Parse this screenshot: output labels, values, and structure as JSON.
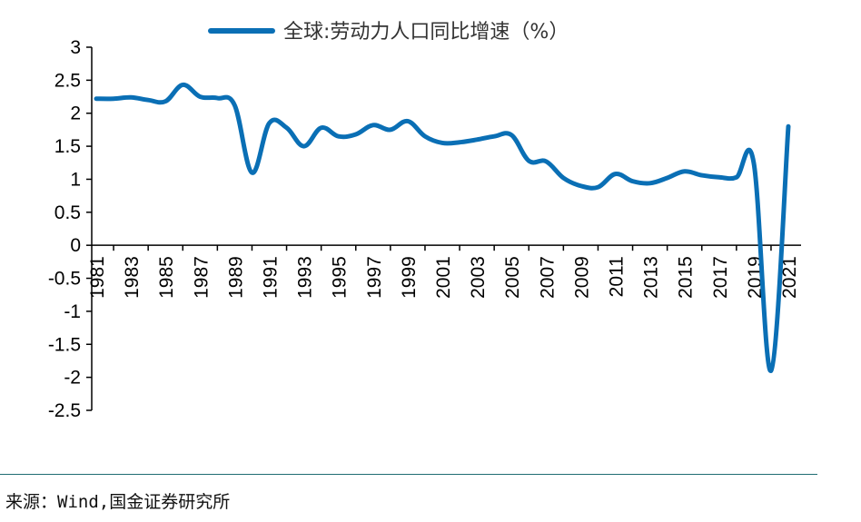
{
  "chart_data": {
    "type": "line",
    "title": "",
    "xlabel": "",
    "ylabel": "",
    "ylim": [
      -2.5,
      3
    ],
    "y_ticks": [
      "3",
      "2.5",
      "2",
      "1.5",
      "1",
      "0.5",
      "0",
      "-0.5",
      "-1",
      "-1.5",
      "-2",
      "-2.5"
    ],
    "x_tick_labels": [
      "1981",
      "1983",
      "1985",
      "1987",
      "1989",
      "1991",
      "1993",
      "1995",
      "1997",
      "1999",
      "2001",
      "2003",
      "2005",
      "2007",
      "2009",
      "2011",
      "2013",
      "2015",
      "2017",
      "2019",
      "2021"
    ],
    "x": [
      1981,
      1982,
      1983,
      1984,
      1985,
      1986,
      1987,
      1988,
      1989,
      1990,
      1991,
      1992,
      1993,
      1994,
      1995,
      1996,
      1997,
      1998,
      1999,
      2000,
      2001,
      2002,
      2003,
      2004,
      2005,
      2006,
      2007,
      2008,
      2009,
      2010,
      2011,
      2012,
      2013,
      2014,
      2015,
      2016,
      2017,
      2018,
      2019,
      2020,
      2021
    ],
    "series": [
      {
        "name": "全球:劳动力人口同比增速（%）",
        "color": "#0a6fb5",
        "values": [
          2.22,
          2.22,
          2.24,
          2.2,
          2.18,
          2.43,
          2.25,
          2.23,
          2.12,
          1.1,
          1.85,
          1.78,
          1.5,
          1.78,
          1.65,
          1.68,
          1.82,
          1.75,
          1.88,
          1.65,
          1.55,
          1.56,
          1.6,
          1.65,
          1.67,
          1.28,
          1.27,
          1.02,
          0.9,
          0.88,
          1.08,
          0.97,
          0.94,
          1.02,
          1.12,
          1.06,
          1.03,
          1.03,
          1.25,
          -1.9,
          1.8
        ]
      }
    ],
    "grid": false,
    "legend_position": "top"
  },
  "source": "来源：Wind,国金证券研究所"
}
